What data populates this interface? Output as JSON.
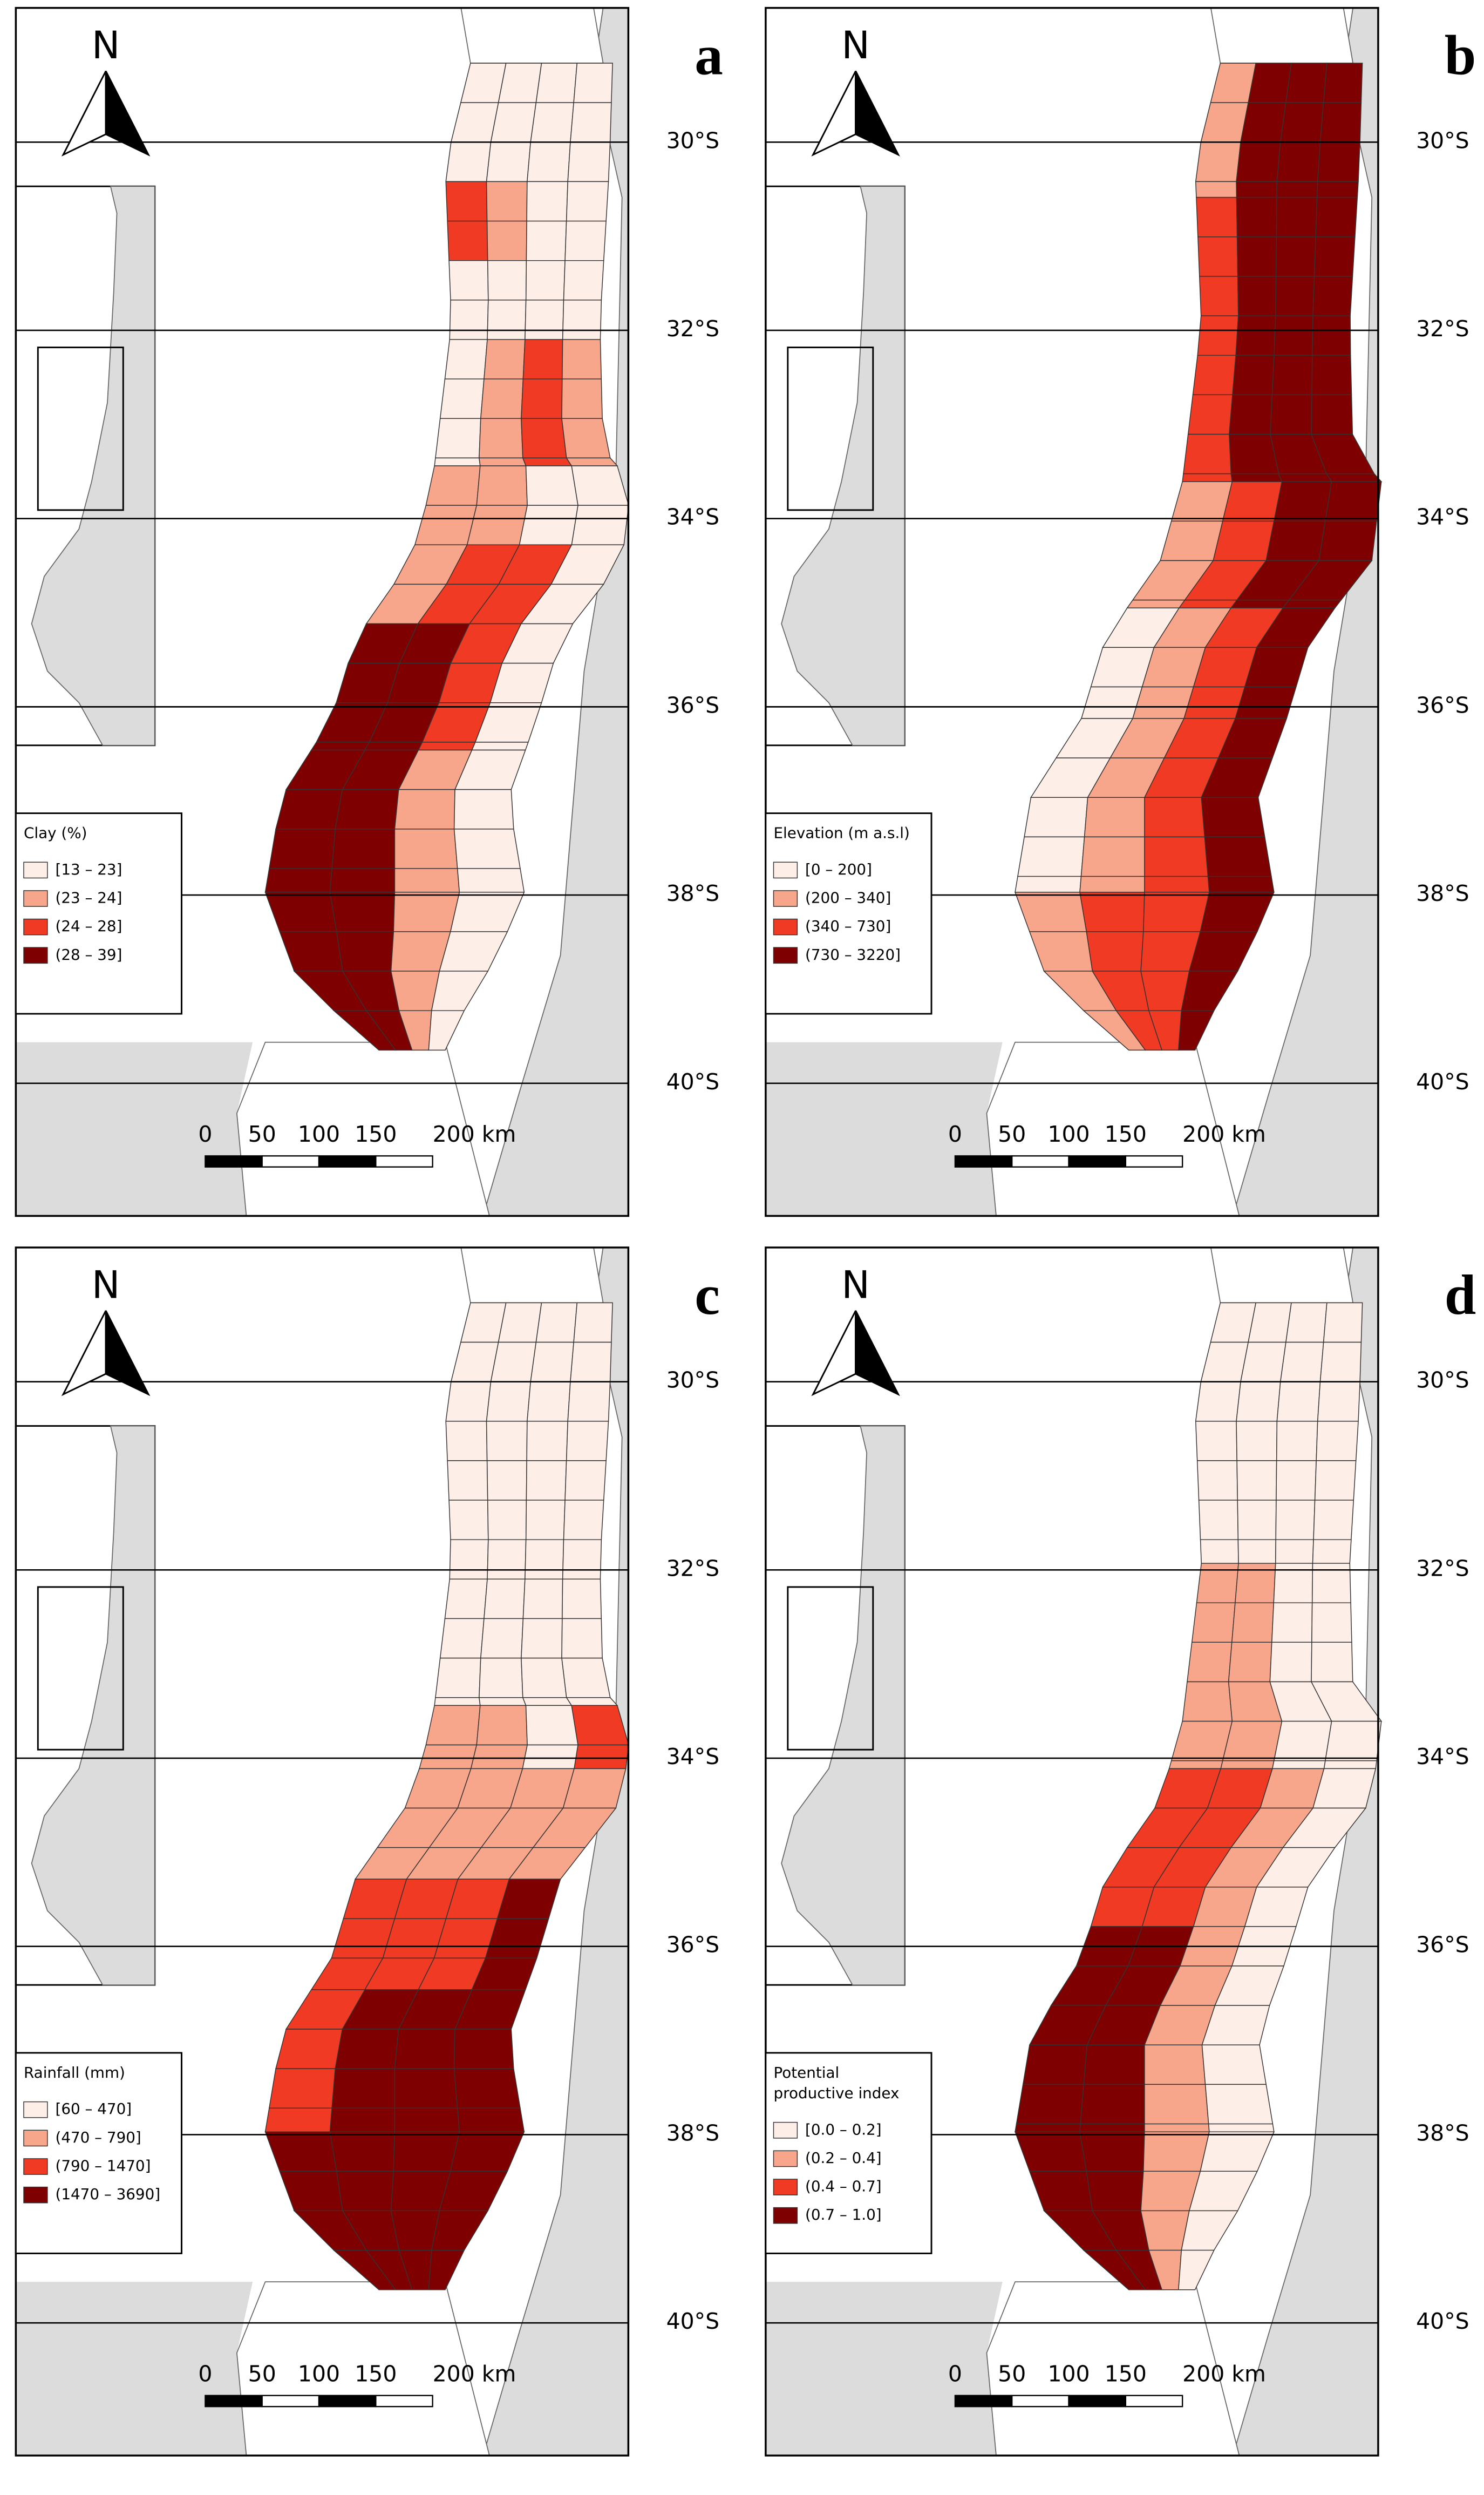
{
  "panels": [
    {
      "letter": "a",
      "north": "N",
      "latitudes": [
        "30°S",
        "32°S",
        "34°S",
        "36°S",
        "38°S",
        "40°S"
      ],
      "legend": {
        "title": [
          "Clay (%)"
        ],
        "items": [
          {
            "label": "[13 – 23]",
            "color": "#fdeee8"
          },
          {
            "label": "(23 – 24]",
            "color": "#f7a58b"
          },
          {
            "label": "(24 – 28]",
            "color": "#f03a23"
          },
          {
            "label": "(28 – 39]",
            "color": "#7f0000"
          }
        ]
      },
      "scale": [
        "0",
        "50",
        "100",
        "150",
        "200 km"
      ]
    },
    {
      "letter": "b",
      "north": "N",
      "latitudes": [
        "30°S",
        "32°S",
        "34°S",
        "36°S",
        "38°S",
        "40°S"
      ],
      "legend": {
        "title": [
          "Elevation (m a.s.l)"
        ],
        "items": [
          {
            "label": "[0 – 200]",
            "color": "#fdeee8"
          },
          {
            "label": "(200 – 340]",
            "color": "#f7a58b"
          },
          {
            "label": "(340 – 730]",
            "color": "#f03a23"
          },
          {
            "label": "(730 – 3220]",
            "color": "#7f0000"
          }
        ]
      },
      "scale": [
        "0",
        "50",
        "100",
        "150",
        "200 km"
      ]
    },
    {
      "letter": "c",
      "north": "N",
      "latitudes": [
        "30°S",
        "32°S",
        "34°S",
        "36°S",
        "38°S",
        "40°S"
      ],
      "legend": {
        "title": [
          "Rainfall (mm)"
        ],
        "items": [
          {
            "label": "[60 – 470]",
            "color": "#fdeee8"
          },
          {
            "label": "(470 – 790]",
            "color": "#f7a58b"
          },
          {
            "label": "(790 – 1470]",
            "color": "#f03a23"
          },
          {
            "label": "(1470 – 3690]",
            "color": "#7f0000"
          }
        ]
      },
      "scale": [
        "0",
        "50",
        "100",
        "150",
        "200 km"
      ]
    },
    {
      "letter": "d",
      "north": "N",
      "latitudes": [
        "30°S",
        "32°S",
        "34°S",
        "36°S",
        "38°S",
        "40°S"
      ],
      "legend": {
        "title": [
          "Potential",
          "productive index"
        ],
        "items": [
          {
            "label": "[0.0 – 0.2]",
            "color": "#fdeee8"
          },
          {
            "label": "(0.2 – 0.4]",
            "color": "#f7a58b"
          },
          {
            "label": "(0.4 – 0.7]",
            "color": "#f03a23"
          },
          {
            "label": "(0.7 – 1.0]",
            "color": "#7f0000"
          }
        ]
      },
      "scale": [
        "0",
        "50",
        "100",
        "150",
        "200 km"
      ]
    }
  ]
}
